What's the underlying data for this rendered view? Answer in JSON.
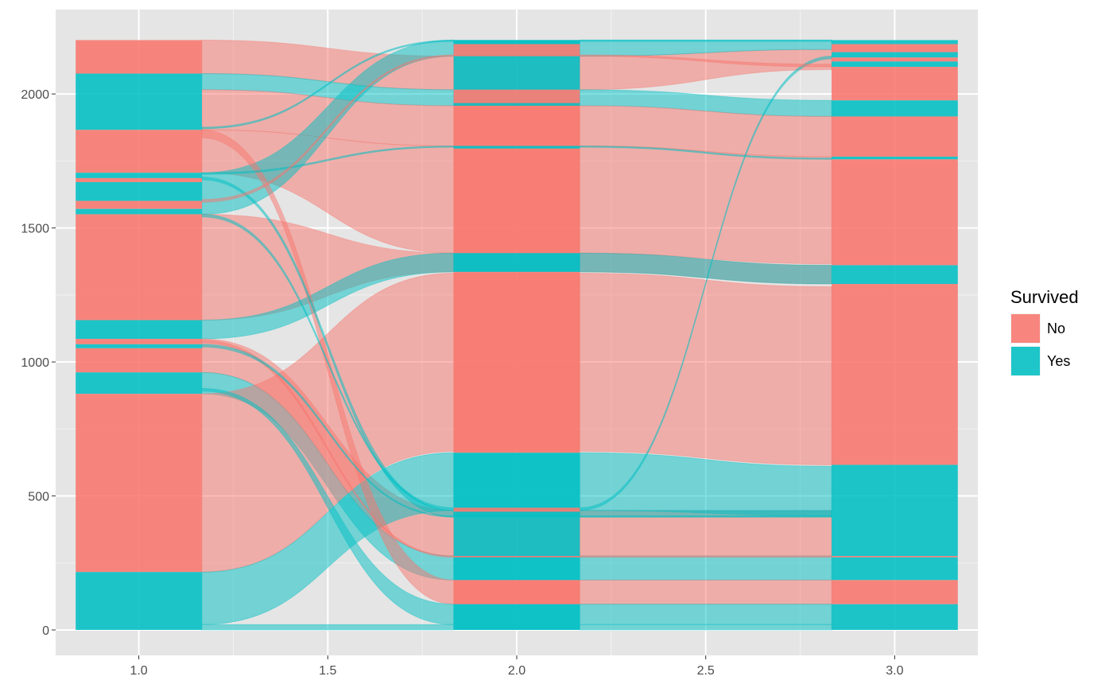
{
  "chart_data": {
    "type": "alluvial",
    "title": "",
    "xlabel": "",
    "ylabel": "",
    "xlim": [
      0.78,
      3.22
    ],
    "ylim": [
      -95,
      2315
    ],
    "x_ticks": [
      1.0,
      1.5,
      2.0,
      2.5,
      3.0
    ],
    "x_tick_labels": [
      "1.0",
      "1.5",
      "2.0",
      "2.5",
      "3.0"
    ],
    "y_ticks": [
      0,
      500,
      1000,
      1500,
      2000
    ],
    "y_tick_labels": [
      "0",
      "500",
      "1000",
      "1500",
      "2000"
    ],
    "x_minor": [
      1.25,
      1.75,
      2.25,
      2.75
    ],
    "y_minor": [
      250,
      750,
      1250,
      1750
    ],
    "grid": true,
    "legend_position": "right",
    "stratum_positions": [
      1,
      2,
      3
    ],
    "stratum_halfwidth": 0.167,
    "total": 2201,
    "legend": {
      "title": "Survived",
      "entries": [
        {
          "label": "No",
          "color": "#F8766D"
        },
        {
          "label": "Yes",
          "color": "#00BFC4"
        }
      ]
    },
    "colors": {
      "No": "#F8766D",
      "Yes": "#00BFC4",
      "panel": "#E5E5E5",
      "grid": "#FFFFFF"
    },
    "flows": [
      {
        "fill": "No",
        "y1": [
          2076,
          2201
        ],
        "y2": [
          2016,
          2141
        ],
        "y3": [
          2091,
          2166
        ]
      },
      {
        "fill": "Yes",
        "y1": [
          2016,
          2076
        ],
        "y2": [
          1956,
          2016
        ],
        "y3": [
          1916,
          1976
        ]
      },
      {
        "fill": "No",
        "y1": [
          1866,
          2016
        ],
        "y2": [
          1806,
          1956
        ],
        "y3": [
          1766,
          1916
        ]
      },
      {
        "fill": "No",
        "y1": [
          1706,
          1866
        ],
        "y2": [
          1406,
          1806
        ],
        "y3": [
          1366,
          1766
        ]
      },
      {
        "fill": "Yes",
        "y1": [
          1551,
          1706
        ],
        "y2": [
          2141,
          2201
        ],
        "y3": [
          2166,
          2201
        ]
      },
      {
        "fill": "No",
        "y1": [
          1156,
          1551
        ],
        "y2": [
          1336,
          1406
        ],
        "y3": [
          1291,
          1361
        ]
      },
      {
        "fill": "Yes",
        "y1": [
          1086,
          1156
        ],
        "y2": [
          1336,
          1406
        ],
        "y3": [
          1291,
          1361
        ]
      },
      {
        "fill": "No",
        "y1": [
          961,
          1086
        ],
        "y2": [
          276,
          446
        ],
        "y3": [
          276,
          446
        ]
      },
      {
        "fill": "Yes",
        "y1": [
          881,
          961
        ],
        "y2": [
          186,
          276
        ],
        "y3": [
          186,
          276
        ]
      },
      {
        "fill": "No",
        "y1": [
          216,
          881
        ],
        "y2": [
          666,
          1331
        ],
        "y3": [
          616,
          1281
        ]
      },
      {
        "fill": "Yes",
        "y1": [
          20,
          216
        ],
        "y2": [
          446,
          661
        ],
        "y3": [
          426,
          611
        ]
      },
      {
        "fill": "Yes",
        "y1": [
          0,
          20
        ],
        "y2": [
          0,
          20
        ],
        "y3": [
          0,
          20
        ]
      },
      {
        "fill": "No",
        "y1": [
          1836,
          1866
        ],
        "y2": [
          96,
          186
        ],
        "y3": [
          96,
          186
        ]
      },
      {
        "fill": "Yes",
        "y1": [
          1870,
          1876
        ],
        "y2": [
          2196,
          2201
        ],
        "y3": [
          2196,
          2201
        ]
      },
      {
        "fill": "Yes",
        "y1": [
          1700,
          1706
        ],
        "y2": [
          1801,
          1806
        ],
        "y3": [
          1756,
          1761
        ]
      },
      {
        "fill": "Yes",
        "y1": [
          1680,
          1690
        ],
        "y2": [
          421,
          446
        ],
        "y3": [
          421,
          446
        ]
      },
      {
        "fill": "Yes",
        "y1": [
          1541,
          1551
        ],
        "y2": [
          446,
          456
        ],
        "y3": [
          2131,
          2141
        ]
      },
      {
        "fill": "Yes",
        "y1": [
          891,
          901
        ],
        "y2": [
          20,
          96
        ],
        "y3": [
          20,
          96
        ]
      },
      {
        "fill": "No",
        "y1": [
          1071,
          1081
        ],
        "y2": [
          271,
          276
        ],
        "y3": [
          271,
          276
        ]
      },
      {
        "fill": "Yes",
        "y1": [
          1056,
          1066
        ],
        "y2": [
          421,
          426
        ],
        "y3": [
          421,
          426
        ]
      },
      {
        "fill": "No",
        "y1": [
          1596,
          1606
        ],
        "y2": [
          2141,
          2146
        ],
        "y3": [
          2101,
          2111
        ]
      }
    ],
    "strata": [
      {
        "x": 1,
        "segments": [
          {
            "fill": "No",
            "y": [
              2076,
              2201
            ]
          },
          {
            "fill": "Yes",
            "y": [
              1866,
              2076
            ]
          },
          {
            "fill": "No",
            "y": [
              1706,
              1866
            ]
          },
          {
            "fill": "Yes",
            "y": [
              1686,
              1706
            ]
          },
          {
            "fill": "No",
            "y": [
              1671,
              1686
            ]
          },
          {
            "fill": "Yes",
            "y": [
              1601,
              1671
            ]
          },
          {
            "fill": "No",
            "y": [
              1571,
              1601
            ]
          },
          {
            "fill": "Yes",
            "y": [
              1551,
              1571
            ]
          },
          {
            "fill": "No",
            "y": [
              1156,
              1551
            ]
          },
          {
            "fill": "Yes",
            "y": [
              1086,
              1156
            ]
          },
          {
            "fill": "No",
            "y": [
              1066,
              1086
            ]
          },
          {
            "fill": "Yes",
            "y": [
              1051,
              1066
            ]
          },
          {
            "fill": "No",
            "y": [
              961,
              1051
            ]
          },
          {
            "fill": "Yes",
            "y": [
              881,
              961
            ]
          },
          {
            "fill": "No",
            "y": [
              216,
              881
            ]
          },
          {
            "fill": "Yes",
            "y": [
              0,
              216
            ]
          }
        ]
      },
      {
        "x": 2,
        "segments": [
          {
            "fill": "Yes",
            "y": [
              2186,
              2201
            ]
          },
          {
            "fill": "No",
            "y": [
              2141,
              2186
            ]
          },
          {
            "fill": "Yes",
            "y": [
              2016,
              2141
            ]
          },
          {
            "fill": "No",
            "y": [
              1956,
              2016
            ]
          },
          {
            "fill": "Yes",
            "y": [
              1956,
              1966
            ]
          },
          {
            "fill": "No",
            "y": [
              1806,
              1956
            ]
          },
          {
            "fill": "Yes",
            "y": [
              1796,
              1806
            ]
          },
          {
            "fill": "No",
            "y": [
              1406,
              1796
            ]
          },
          {
            "fill": "Yes",
            "y": [
              1336,
              1406
            ]
          },
          {
            "fill": "No",
            "y": [
              661,
              1336
            ]
          },
          {
            "fill": "Yes",
            "y": [
              456,
              661
            ]
          },
          {
            "fill": "No",
            "y": [
              441,
              456
            ]
          },
          {
            "fill": "Yes",
            "y": [
              276,
              441
            ]
          },
          {
            "fill": "No",
            "y": [
              271,
              276
            ]
          },
          {
            "fill": "Yes",
            "y": [
              186,
              271
            ]
          },
          {
            "fill": "No",
            "y": [
              96,
              186
            ]
          },
          {
            "fill": "Yes",
            "y": [
              0,
              96
            ]
          }
        ]
      },
      {
        "x": 3,
        "segments": [
          {
            "fill": "Yes",
            "y": [
              2186,
              2201
            ]
          },
          {
            "fill": "No",
            "y": [
              2156,
              2186
            ]
          },
          {
            "fill": "Yes",
            "y": [
              2136,
              2156
            ]
          },
          {
            "fill": "No",
            "y": [
              2121,
              2136
            ]
          },
          {
            "fill": "Yes",
            "y": [
              2101,
              2121
            ]
          },
          {
            "fill": "No",
            "y": [
              1976,
              2101
            ]
          },
          {
            "fill": "Yes",
            "y": [
              1916,
              1976
            ]
          },
          {
            "fill": "No",
            "y": [
              1766,
              1916
            ]
          },
          {
            "fill": "Yes",
            "y": [
              1756,
              1766
            ]
          },
          {
            "fill": "No",
            "y": [
              1361,
              1756
            ]
          },
          {
            "fill": "Yes",
            "y": [
              1291,
              1361
            ]
          },
          {
            "fill": "No",
            "y": [
              616,
              1291
            ]
          },
          {
            "fill": "Yes",
            "y": [
              276,
              616
            ]
          },
          {
            "fill": "No",
            "y": [
              271,
              276
            ]
          },
          {
            "fill": "Yes",
            "y": [
              186,
              271
            ]
          },
          {
            "fill": "No",
            "y": [
              96,
              186
            ]
          },
          {
            "fill": "Yes",
            "y": [
              0,
              96
            ]
          }
        ]
      }
    ]
  }
}
